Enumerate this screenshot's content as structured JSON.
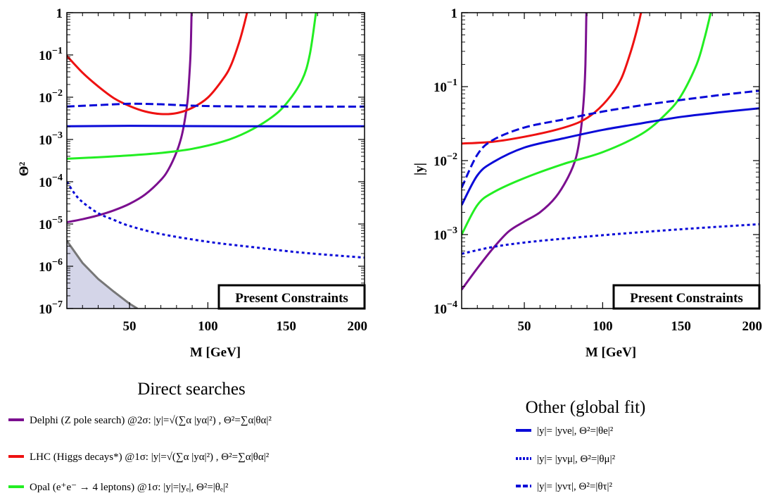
{
  "colors": {
    "purple": "#7B0F8F",
    "red": "#EE1111",
    "green": "#22EE22",
    "blue": "#0A0AD8",
    "shade_fill": "#D4D5E8",
    "shade_edge": "#777777"
  },
  "charts": [
    {
      "ylabel": "Θ²",
      "xlabel": "M [GeV]",
      "box_label": "Present Constraints"
    },
    {
      "ylabel": "|y|",
      "xlabel": "M [GeV]",
      "box_label": "Present Constraints"
    }
  ],
  "chart_data": [
    {
      "type": "line",
      "log_y": true,
      "xlim": [
        10,
        200
      ],
      "ylim": [
        1e-07,
        1
      ],
      "x_ticks": [
        50,
        100,
        150,
        200
      ],
      "y_ticks": [
        {
          "value": 1,
          "label": "1"
        },
        {
          "value": 0.1,
          "label": "10",
          "exp": "−1"
        },
        {
          "value": 0.01,
          "label": "10",
          "exp": "−2"
        },
        {
          "value": 0.001,
          "label": "10",
          "exp": "−3"
        },
        {
          "value": 0.0001,
          "label": "10",
          "exp": "−4"
        },
        {
          "value": 1e-05,
          "label": "10",
          "exp": "−5"
        },
        {
          "value": 1e-06,
          "label": "10",
          "exp": "−6"
        },
        {
          "value": 1e-07,
          "label": "10",
          "exp": "−7"
        }
      ],
      "series": [
        {
          "color": "purple",
          "style": "solid",
          "points": [
            [
              10,
              1.1e-05
            ],
            [
              20,
              1.3e-05
            ],
            [
              30,
              1.6e-05
            ],
            [
              40,
              2.1e-05
            ],
            [
              50,
              3e-05
            ],
            [
              60,
              5e-05
            ],
            [
              70,
              0.00011
            ],
            [
              75,
              0.0002
            ],
            [
              80,
              0.0005
            ],
            [
              83,
              0.0011
            ],
            [
              85,
              0.0025
            ],
            [
              87,
              0.008
            ],
            [
              88,
              0.025
            ],
            [
              89,
              0.12
            ],
            [
              89.6,
              1.0
            ]
          ]
        },
        {
          "color": "red",
          "style": "solid",
          "points": [
            [
              10,
              0.095
            ],
            [
              20,
              0.038
            ],
            [
              30,
              0.018
            ],
            [
              40,
              0.0095
            ],
            [
              50,
              0.0062
            ],
            [
              60,
              0.0046
            ],
            [
              70,
              0.004
            ],
            [
              80,
              0.0042
            ],
            [
              90,
              0.0056
            ],
            [
              100,
              0.0098
            ],
            [
              110,
              0.028
            ],
            [
              115,
              0.06
            ],
            [
              120,
              0.2
            ],
            [
              123,
              0.5
            ],
            [
              125,
              1.0
            ]
          ]
        },
        {
          "color": "green",
          "style": "solid",
          "points": [
            [
              10,
              0.00035
            ],
            [
              30,
              0.00038
            ],
            [
              50,
              0.00042
            ],
            [
              70,
              0.00048
            ],
            [
              90,
              0.0006
            ],
            [
              110,
              0.0009
            ],
            [
              125,
              0.0015
            ],
            [
              140,
              0.0032
            ],
            [
              150,
              0.007
            ],
            [
              160,
              0.025
            ],
            [
              165,
              0.1
            ],
            [
              169,
              1.0
            ]
          ]
        },
        {
          "color": "blue",
          "style": "dashed",
          "points": [
            [
              10,
              0.006
            ],
            [
              30,
              0.0065
            ],
            [
              50,
              0.007
            ],
            [
              70,
              0.0068
            ],
            [
              90,
              0.0063
            ],
            [
              110,
              0.0061
            ],
            [
              150,
              0.006
            ],
            [
              200,
              0.006
            ]
          ]
        },
        {
          "color": "blue",
          "style": "solid",
          "points": [
            [
              10,
              0.00205
            ],
            [
              50,
              0.0021
            ],
            [
              80,
              0.00208
            ],
            [
              120,
              0.00205
            ],
            [
              200,
              0.00205
            ]
          ]
        },
        {
          "color": "blue",
          "style": "dotted",
          "points": [
            [
              10,
              0.0001
            ],
            [
              15,
              5.2e-05
            ],
            [
              20,
              3.3e-05
            ],
            [
              30,
              1.8e-05
            ],
            [
              40,
              1.25e-05
            ],
            [
              50,
              9e-06
            ],
            [
              70,
              5.8e-06
            ],
            [
              100,
              3.8e-06
            ],
            [
              130,
              2.8e-06
            ],
            [
              160,
              2.1e-06
            ],
            [
              200,
              1.6e-06
            ]
          ]
        }
      ],
      "shaded_region": [
        [
          10,
          4e-06
        ],
        [
          20,
          1.2e-06
        ],
        [
          30,
          5e-07
        ],
        [
          40,
          2.5e-07
        ],
        [
          50,
          1.3e-07
        ],
        [
          55,
          1e-07
        ]
      ]
    },
    {
      "type": "line",
      "log_y": true,
      "xlim": [
        10,
        200
      ],
      "ylim": [
        0.0001,
        1
      ],
      "x_ticks": [
        50,
        100,
        150,
        200
      ],
      "y_ticks": [
        {
          "value": 1,
          "label": "1"
        },
        {
          "value": 0.1,
          "label": "10",
          "exp": "−1"
        },
        {
          "value": 0.01,
          "label": "10",
          "exp": "−2"
        },
        {
          "value": 0.001,
          "label": "10",
          "exp": "−3"
        },
        {
          "value": 0.0001,
          "label": "10",
          "exp": "−4"
        }
      ],
      "series": [
        {
          "color": "purple",
          "style": "solid",
          "points": [
            [
              10,
              0.00018
            ],
            [
              20,
              0.00035
            ],
            [
              30,
              0.00065
            ],
            [
              40,
              0.0011
            ],
            [
              50,
              0.0015
            ],
            [
              60,
              0.002
            ],
            [
              70,
              0.0032
            ],
            [
              78,
              0.006
            ],
            [
              83,
              0.011
            ],
            [
              86,
              0.025
            ],
            [
              88,
              0.07
            ],
            [
              89,
              0.2
            ],
            [
              89.6,
              1.0
            ]
          ]
        },
        {
          "color": "red",
          "style": "solid",
          "points": [
            [
              10,
              0.017
            ],
            [
              30,
              0.018
            ],
            [
              50,
              0.021
            ],
            [
              70,
              0.026
            ],
            [
              85,
              0.033
            ],
            [
              95,
              0.045
            ],
            [
              105,
              0.075
            ],
            [
              112,
              0.13
            ],
            [
              118,
              0.3
            ],
            [
              122,
              0.6
            ],
            [
              124.5,
              1.0
            ]
          ]
        },
        {
          "color": "green",
          "style": "solid",
          "points": [
            [
              10,
              0.001
            ],
            [
              20,
              0.0025
            ],
            [
              30,
              0.0037
            ],
            [
              50,
              0.0058
            ],
            [
              75,
              0.009
            ],
            [
              100,
              0.013
            ],
            [
              125,
              0.023
            ],
            [
              140,
              0.042
            ],
            [
              150,
              0.075
            ],
            [
              160,
              0.2
            ],
            [
              165,
              0.45
            ],
            [
              169,
              1.0
            ]
          ]
        },
        {
          "color": "blue",
          "style": "solid",
          "points": [
            [
              10,
              0.0025
            ],
            [
              20,
              0.0063
            ],
            [
              30,
              0.0095
            ],
            [
              50,
              0.015
            ],
            [
              75,
              0.02
            ],
            [
              100,
              0.026
            ],
            [
              125,
              0.032
            ],
            [
              150,
              0.039
            ],
            [
              175,
              0.045
            ],
            [
              200,
              0.051
            ]
          ]
        },
        {
          "color": "blue",
          "style": "dashed",
          "points": [
            [
              10,
              0.0043
            ],
            [
              20,
              0.012
            ],
            [
              30,
              0.019
            ],
            [
              50,
              0.028
            ],
            [
              75,
              0.036
            ],
            [
              100,
              0.046
            ],
            [
              125,
              0.056
            ],
            [
              150,
              0.066
            ],
            [
              175,
              0.077
            ],
            [
              200,
              0.088
            ]
          ]
        },
        {
          "color": "blue",
          "style": "dotted",
          "points": [
            [
              10,
              0.00055
            ],
            [
              30,
              0.00068
            ],
            [
              50,
              0.00078
            ],
            [
              75,
              0.00088
            ],
            [
              100,
              0.00098
            ],
            [
              125,
              0.00108
            ],
            [
              150,
              0.00118
            ],
            [
              175,
              0.00128
            ],
            [
              200,
              0.00138
            ]
          ]
        }
      ]
    }
  ],
  "legend_direct": {
    "title": "Direct searches",
    "items": [
      {
        "color": "purple",
        "style": "solid",
        "label": "Delphi (Z pole search) @2σ:",
        "formula": "|y|=√(∑α |yα|²) , Θ²=∑α|θα|²"
      },
      {
        "color": "red",
        "style": "solid",
        "label": "LHC (Higgs decays*) @1σ:",
        "formula": "|y|=√(∑α |yα|²) , Θ²=∑α|θα|²"
      },
      {
        "color": "green",
        "style": "solid",
        "label": "Opal (e⁺e⁻ → 4 leptons) @1σ:",
        "formula": "|y|=|yₑ|, Θ²=|θₑ|²"
      }
    ]
  },
  "legend_other": {
    "title": "Other (global fit)",
    "items": [
      {
        "color": "blue",
        "style": "solid",
        "formula": "|y|= |yνe|, Θ²=|θe|²"
      },
      {
        "color": "blue",
        "style": "dotted",
        "formula": "|y|= |yνμ|, Θ²=|θμ|²"
      },
      {
        "color": "blue",
        "style": "dashed",
        "formula": "|y|= |yντ|, Θ²=|θτ|²"
      }
    ]
  }
}
